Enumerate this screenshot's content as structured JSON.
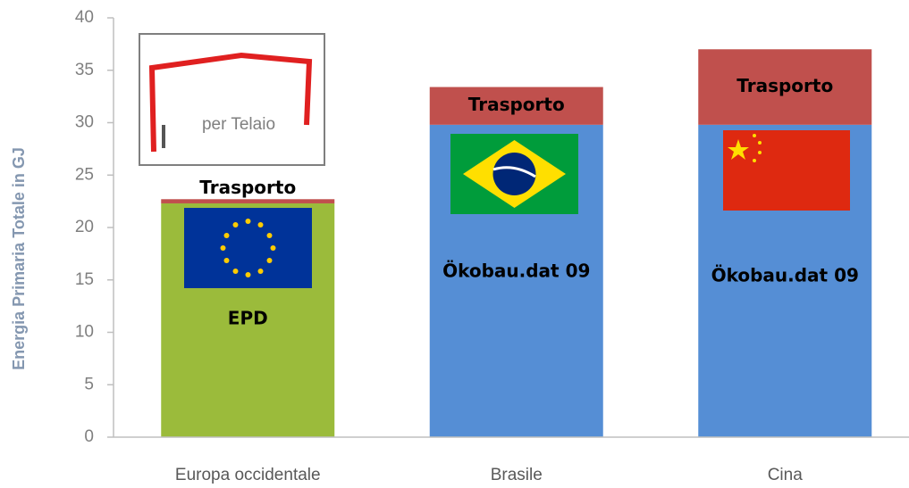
{
  "chart_data": {
    "type": "stacked-bar",
    "y_label": "Energia Primaria Totale in GJ",
    "annotation": "per Telaio",
    "categories": [
      "Europa occidentale",
      "Brasile",
      "Cina"
    ],
    "series": [
      {
        "labels": [
          "EPD",
          "Ökobau.dat 09",
          "Ökobau.dat 09"
        ],
        "colors": [
          "#9bbb3b",
          "#558ed5",
          "#558ed5"
        ],
        "values": [
          22.3,
          29.8,
          29.8
        ]
      },
      {
        "name": "Trasporto",
        "color": "#c0504d",
        "values": [
          0.4,
          3.6,
          7.2
        ]
      }
    ],
    "ylim": [
      0,
      40
    ],
    "yticks": [
      0,
      5,
      10,
      15,
      20,
      25,
      30,
      35,
      40
    ],
    "grid": false
  }
}
